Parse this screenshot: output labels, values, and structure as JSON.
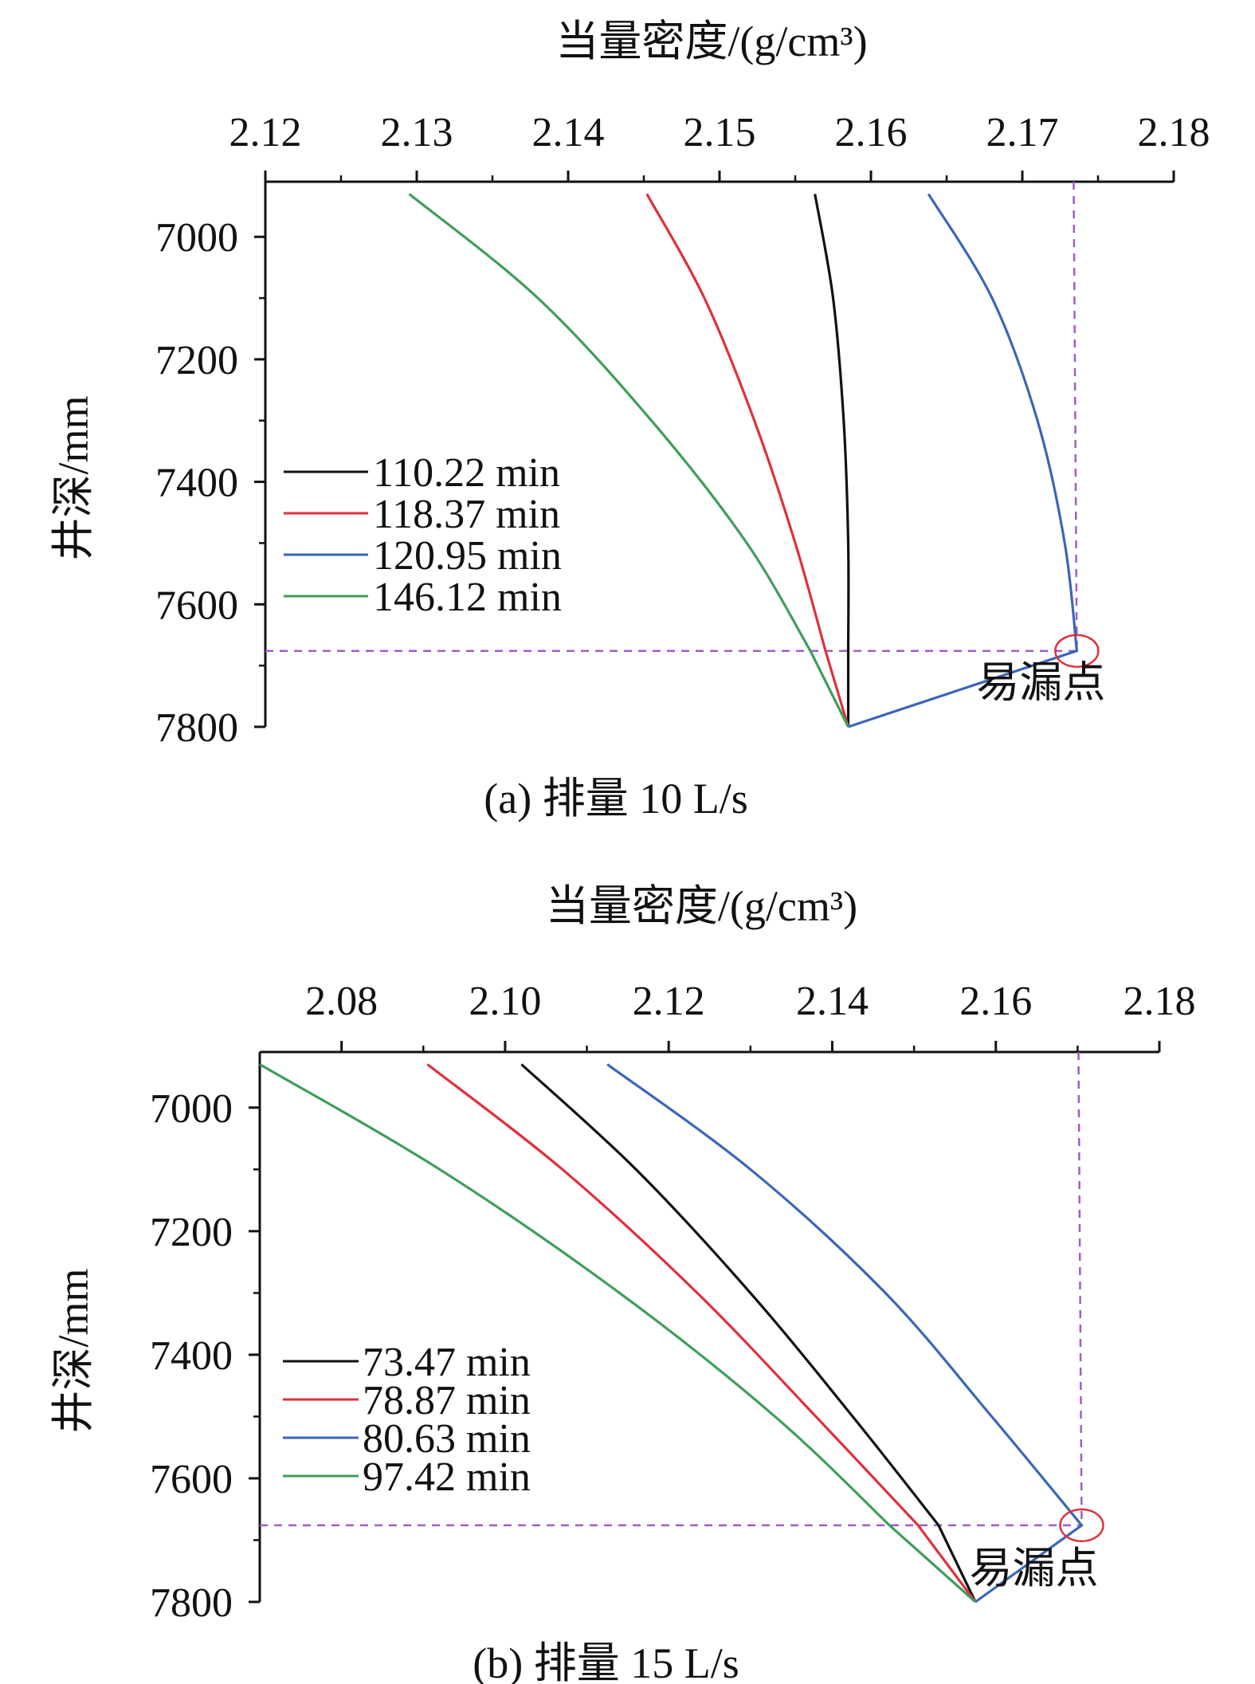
{
  "chart_data": [
    {
      "type": "line",
      "caption": "(a) 排量 10 L/s",
      "xlabel": "当量密度/(g/cm³)",
      "ylabel": "井深/mm",
      "xlim": [
        2.12,
        2.18
      ],
      "ylim": [
        6910,
        7800
      ],
      "y_inverted": true,
      "x_axis_position": "top",
      "xticks": [
        "2.12",
        "2.13",
        "2.14",
        "2.15",
        "2.16",
        "2.17",
        "2.18"
      ],
      "yticks": [
        "7000",
        "7200",
        "7400",
        "7600",
        "7800"
      ],
      "legend_position": "center-left",
      "series": [
        {
          "name": "110.22 min",
          "color": "#111111",
          "points": [
            [
              2.1563,
              6930
            ],
            [
              2.1575,
              7100
            ],
            [
              2.1582,
              7300
            ],
            [
              2.1585,
              7500
            ],
            [
              2.1585,
              7676
            ],
            [
              2.1585,
              7800
            ]
          ]
        },
        {
          "name": "118.37 min",
          "color": "#e0303c",
          "points": [
            [
              2.1452,
              6930
            ],
            [
              2.149,
              7100
            ],
            [
              2.1523,
              7300
            ],
            [
              2.155,
              7500
            ],
            [
              2.157,
              7676
            ],
            [
              2.1585,
              7800
            ]
          ]
        },
        {
          "name": "120.95 min",
          "color": "#3a66b8",
          "points": [
            [
              2.1638,
              6930
            ],
            [
              2.168,
              7100
            ],
            [
              2.171,
              7300
            ],
            [
              2.1728,
              7500
            ],
            [
              2.1736,
              7676
            ],
            [
              2.1585,
              7800
            ]
          ]
        },
        {
          "name": "146.12 min",
          "color": "#3e9e5a",
          "points": [
            [
              2.1295,
              6930
            ],
            [
              2.138,
              7100
            ],
            [
              2.1455,
              7300
            ],
            [
              2.1518,
              7500
            ],
            [
              2.156,
              7676
            ],
            [
              2.1585,
              7800
            ]
          ]
        }
      ],
      "annotation": {
        "text": "易漏点",
        "x": 2.1736,
        "y": 7676
      },
      "guide_lines": {
        "x": 2.1736,
        "y": 7676,
        "color": "#a05cc8"
      }
    },
    {
      "type": "line",
      "caption": "(b) 排量 15 L/s",
      "xlabel": "当量密度/(g/cm³)",
      "ylabel": "井深/mm",
      "xlim": [
        2.07,
        2.18
      ],
      "ylim": [
        6910,
        7800
      ],
      "y_inverted": true,
      "x_axis_position": "top",
      "xticks": [
        "2.08",
        "2.10",
        "2.12",
        "2.14",
        "2.16",
        "2.18"
      ],
      "yticks": [
        "7000",
        "7200",
        "7400",
        "7600",
        "7800"
      ],
      "legend_position": "center-left",
      "series": [
        {
          "name": "73.47 min",
          "color": "#111111",
          "points": [
            [
              2.102,
              6930
            ],
            [
              2.116,
              7100
            ],
            [
              2.13,
              7300
            ],
            [
              2.1425,
              7500
            ],
            [
              2.153,
              7676
            ],
            [
              2.1575,
              7800
            ]
          ]
        },
        {
          "name": "78.87 min",
          "color": "#e0303c",
          "points": [
            [
              2.0905,
              6930
            ],
            [
              2.107,
              7100
            ],
            [
              2.1235,
              7300
            ],
            [
              2.138,
              7500
            ],
            [
              2.1505,
              7676
            ],
            [
              2.1575,
              7800
            ]
          ]
        },
        {
          "name": "80.63 min",
          "color": "#3a66b8",
          "points": [
            [
              2.1125,
              6930
            ],
            [
              2.13,
              7100
            ],
            [
              2.1465,
              7300
            ],
            [
              2.1595,
              7500
            ],
            [
              2.1705,
              7676
            ],
            [
              2.1575,
              7800
            ]
          ]
        },
        {
          "name": "97.42 min",
          "color": "#3e9e5a",
          "points": [
            [
              2.07,
              6930
            ],
            [
              2.092,
              7100
            ],
            [
              2.114,
              7300
            ],
            [
              2.133,
              7500
            ],
            [
              2.147,
              7676
            ],
            [
              2.1575,
              7800
            ]
          ]
        }
      ],
      "annotation": {
        "text": "易漏点",
        "x": 2.1705,
        "y": 7676
      },
      "guide_lines": {
        "x": 2.1705,
        "y": 7676,
        "color": "#a05cc8"
      }
    }
  ]
}
